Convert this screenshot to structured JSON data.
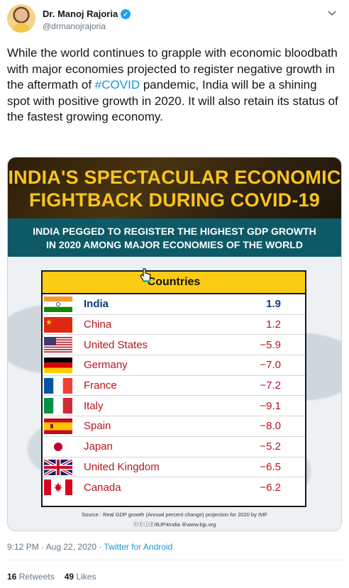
{
  "tweet": {
    "display_name": "Dr. Manoj Rajoria",
    "handle": "@drmanojrajoria",
    "text_before": "While the world continues to grapple with economic bloodbath with major economies projected to register negative growth in the aftermath of ",
    "hashtag": "#COVID",
    "text_after": " pandemic, India will be a shining spot with positive growth in 2020. It will also retain its status of the fastest growing economy.",
    "timestamp": "9:12 PM · Aug 22, 2020 · ",
    "client": "Twitter for Android",
    "retweets_count": "16",
    "retweets_label": "Retweets",
    "likes_count": "49",
    "likes_label": "Likes"
  },
  "infographic": {
    "title_line1": "INDIA'S SPECTACULAR ECONOMIC",
    "title_line2": "FIGHTBACK DURING COVID-19",
    "subtitle_line1": "INDIA PEGGED TO REGISTER THE HIGHEST GDP GROWTH",
    "subtitle_line2": "IN 2020 AMONG MAJOR ECONOMIES OF THE WORLD",
    "table_header": "Countries",
    "rows": [
      {
        "country": "India",
        "value": "1.9"
      },
      {
        "country": "China",
        "value": "1.2"
      },
      {
        "country": "United States",
        "value": "−5.9"
      },
      {
        "country": "Germany",
        "value": "−7.0"
      },
      {
        "country": "France",
        "value": "−7.2"
      },
      {
        "country": "Italy",
        "value": "−9.1"
      },
      {
        "country": "Spain",
        "value": "−8.0"
      },
      {
        "country": "Japan",
        "value": "−5.2"
      },
      {
        "country": "United Kingdom",
        "value": "−6.5"
      },
      {
        "country": "Canada",
        "value": "−6.2"
      }
    ],
    "source": "Source : Real GDP growth (Annual percent change) projection for 2020 by IMF",
    "social_handle": "/BJP4India",
    "website": "www.bjp.org"
  },
  "colors": {
    "accent": "#1b95e0",
    "banner_text": "#f9c51e",
    "subband": "#0d5a66",
    "negative": "#b8141d",
    "positive": "#0d3d7a"
  }
}
